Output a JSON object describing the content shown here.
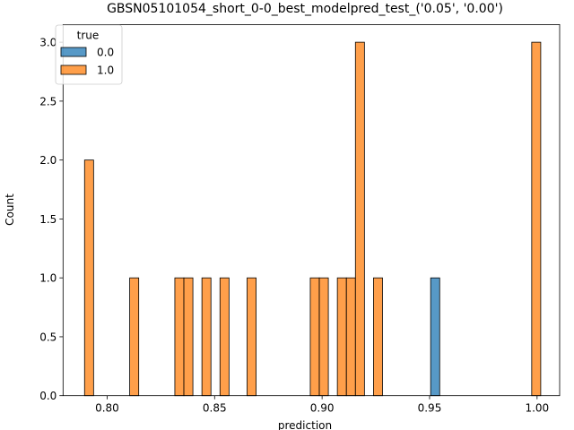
{
  "chart_data": {
    "type": "bar",
    "title": "GBSN05101054_short_0-0_best_modelpred_test_('0.05', '0.00')",
    "xlabel": "prediction",
    "ylabel": "Count",
    "xlim": [
      0.7795,
      1.0105
    ],
    "ylim": [
      0,
      3.15
    ],
    "x_ticks": [
      0.8,
      0.85,
      0.9,
      0.95,
      1.0
    ],
    "x_tick_labels": [
      "0.80",
      "0.85",
      "0.90",
      "0.95",
      "1.00"
    ],
    "y_ticks": [
      0,
      0.5,
      1.0,
      1.5,
      2.0,
      2.5,
      3.0
    ],
    "y_tick_labels": [
      "0.0",
      "0.5",
      "1.0",
      "1.5",
      "2.0",
      "2.5",
      "3.0"
    ],
    "bin_width": 0.0042,
    "legend": {
      "title": "true",
      "position": "top-left"
    },
    "series": [
      {
        "name": "0.0",
        "color": "#1f77b4",
        "bins": [
          {
            "x": 0.9505,
            "count": 1
          }
        ]
      },
      {
        "name": "1.0",
        "color": "#ff7f0e",
        "bins": [
          {
            "x": 0.7895,
            "count": 2
          },
          {
            "x": 0.8105,
            "count": 1
          },
          {
            "x": 0.8315,
            "count": 1
          },
          {
            "x": 0.8357,
            "count": 1
          },
          {
            "x": 0.8441,
            "count": 1
          },
          {
            "x": 0.8525,
            "count": 1
          },
          {
            "x": 0.8651,
            "count": 1
          },
          {
            "x": 0.8945,
            "count": 1
          },
          {
            "x": 0.8987,
            "count": 1
          },
          {
            "x": 0.9071,
            "count": 1
          },
          {
            "x": 0.9113,
            "count": 1
          },
          {
            "x": 0.9155,
            "count": 3
          },
          {
            "x": 0.9239,
            "count": 1
          },
          {
            "x": 0.9975,
            "count": 3
          }
        ]
      }
    ]
  }
}
